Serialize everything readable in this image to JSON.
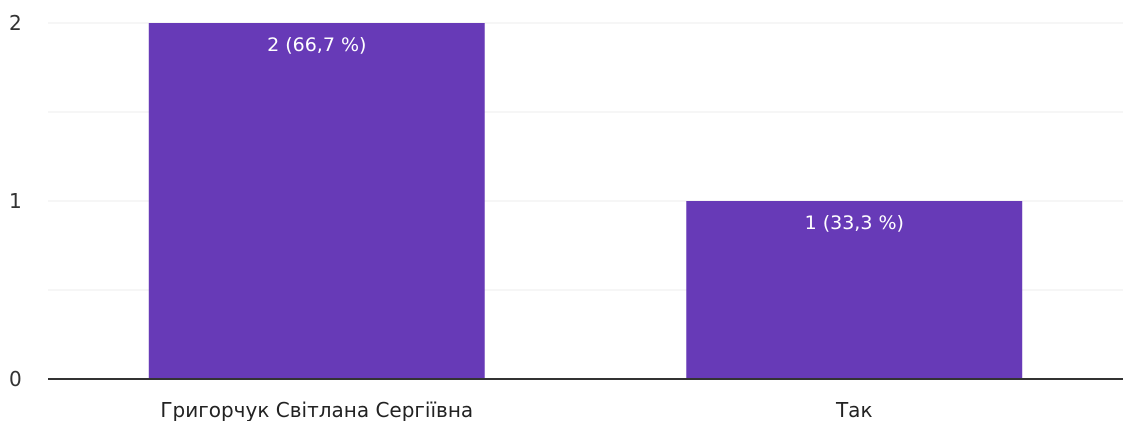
{
  "chart_data": {
    "type": "bar",
    "categories": [
      "Григорчук Світлана Сергіївна",
      "Так"
    ],
    "values": [
      2,
      1
    ],
    "data_labels": [
      "2 (66,7 %)",
      "1 (33,3 %)"
    ],
    "title": "",
    "xlabel": "",
    "ylabel": "",
    "ylim": [
      0,
      2
    ],
    "yticks": [
      0,
      1,
      2
    ],
    "grid": true,
    "legend": "none",
    "bar_color": "#673ab7",
    "grid_color": "#eeeeee",
    "axis_color": "#333333"
  }
}
